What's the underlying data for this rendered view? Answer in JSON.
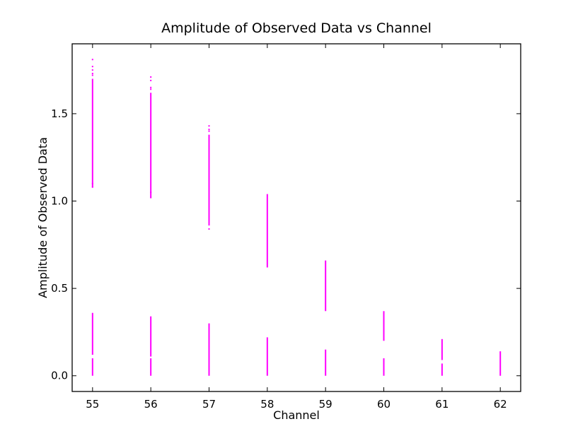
{
  "chart_data": {
    "type": "scatter",
    "title": "Amplitude of Observed Data vs Channel",
    "xlabel": "Channel",
    "ylabel": "Amplitude of Observed Data",
    "xlim": [
      54.65,
      62.35
    ],
    "ylim": [
      -0.09,
      1.9
    ],
    "xticks": [
      55,
      56,
      57,
      58,
      59,
      60,
      61,
      62
    ],
    "yticks": [
      0.0,
      0.5,
      1.0,
      1.5
    ],
    "xtick_labels": [
      "55",
      "56",
      "57",
      "58",
      "59",
      "60",
      "61",
      "62"
    ],
    "ytick_labels": [
      "0.0",
      "0.5",
      "1.0",
      "1.5"
    ],
    "grid": false,
    "marker_color": "#ff00ff",
    "series": [
      {
        "segments": [
          {
            "x": 55,
            "y_min": 0.0,
            "y_max": 0.1
          },
          {
            "x": 55,
            "y_min": 0.12,
            "y_max": 0.36
          },
          {
            "x": 55,
            "y_min": 1.08,
            "y_max": 1.7
          },
          {
            "x": 56,
            "y_min": 0.0,
            "y_max": 0.1
          },
          {
            "x": 56,
            "y_min": 0.11,
            "y_max": 0.34
          },
          {
            "x": 56,
            "y_min": 1.02,
            "y_max": 1.62
          },
          {
            "x": 57,
            "y_min": 0.0,
            "y_max": 0.3
          },
          {
            "x": 57,
            "y_min": 0.86,
            "y_max": 1.38
          },
          {
            "x": 58,
            "y_min": 0.0,
            "y_max": 0.22
          },
          {
            "x": 58,
            "y_min": 0.62,
            "y_max": 1.04
          },
          {
            "x": 59,
            "y_min": 0.0,
            "y_max": 0.15
          },
          {
            "x": 59,
            "y_min": 0.37,
            "y_max": 0.66
          },
          {
            "x": 60,
            "y_min": 0.0,
            "y_max": 0.1
          },
          {
            "x": 60,
            "y_min": 0.2,
            "y_max": 0.37
          },
          {
            "x": 61,
            "y_min": 0.0,
            "y_max": 0.07
          },
          {
            "x": 61,
            "y_min": 0.09,
            "y_max": 0.21
          },
          {
            "x": 62,
            "y_min": 0.0,
            "y_max": 0.14
          }
        ],
        "outliers": [
          {
            "x": 55,
            "y": 1.81
          },
          {
            "x": 55,
            "y": 1.77
          },
          {
            "x": 55,
            "y": 1.75
          },
          {
            "x": 55,
            "y": 1.73
          },
          {
            "x": 55,
            "y": 1.72
          },
          {
            "x": 55,
            "y": 1.1
          },
          {
            "x": 55,
            "y": 1.08
          },
          {
            "x": 56,
            "y": 1.71
          },
          {
            "x": 56,
            "y": 1.69
          },
          {
            "x": 56,
            "y": 1.65
          },
          {
            "x": 56,
            "y": 1.64
          },
          {
            "x": 56,
            "y": 1.05
          },
          {
            "x": 56,
            "y": 1.02
          },
          {
            "x": 57,
            "y": 1.43
          },
          {
            "x": 57,
            "y": 1.41
          },
          {
            "x": 57,
            "y": 1.4
          },
          {
            "x": 57,
            "y": 0.84
          }
        ]
      }
    ]
  }
}
